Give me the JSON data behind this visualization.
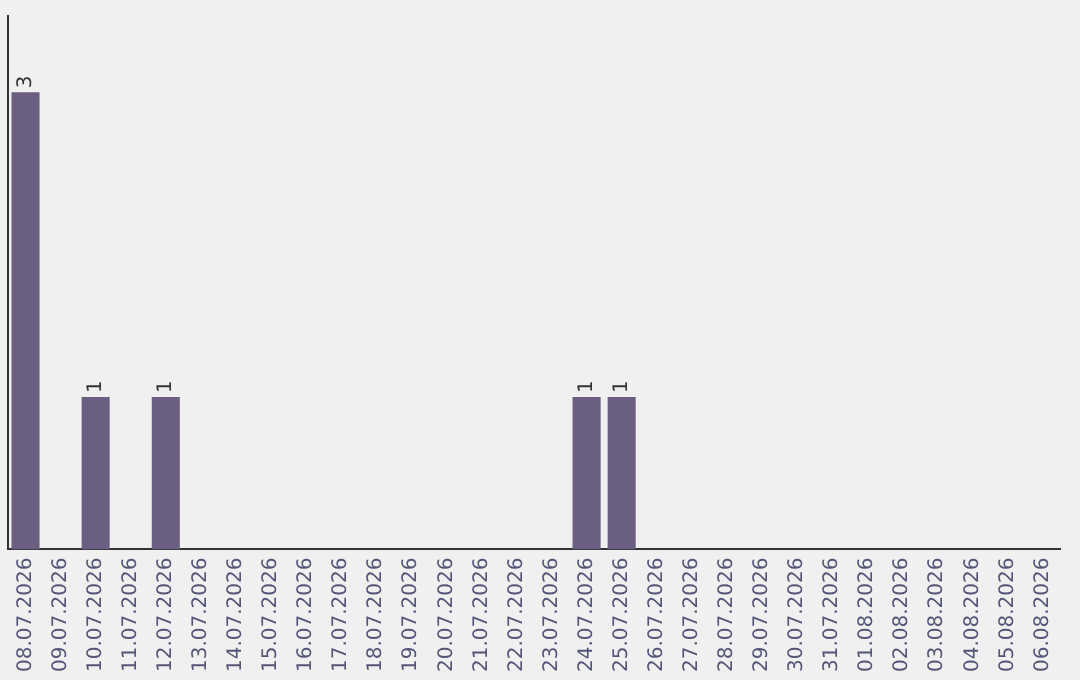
{
  "chart_data": {
    "type": "bar",
    "categories": [
      "08.07.2026",
      "09.07.2026",
      "10.07.2026",
      "11.07.2026",
      "12.07.2026",
      "13.07.2026",
      "14.07.2026",
      "15.07.2026",
      "16.07.2026",
      "17.07.2026",
      "18.07.2026",
      "19.07.2026",
      "20.07.2026",
      "21.07.2026",
      "22.07.2026",
      "23.07.2026",
      "24.07.2026",
      "25.07.2026",
      "26.07.2026",
      "27.07.2026",
      "28.07.2026",
      "29.07.2026",
      "30.07.2026",
      "31.07.2026",
      "01.08.2026",
      "02.08.2026",
      "03.08.2026",
      "04.08.2026",
      "05.08.2026",
      "06.08.2026"
    ],
    "values": [
      3,
      0,
      1,
      0,
      1,
      0,
      0,
      0,
      0,
      0,
      0,
      0,
      0,
      0,
      0,
      0,
      1,
      1,
      0,
      0,
      0,
      0,
      0,
      0,
      0,
      0,
      0,
      0,
      0,
      0
    ],
    "value_labels": [
      "3",
      null,
      "1",
      null,
      "1",
      null,
      null,
      null,
      null,
      null,
      null,
      null,
      null,
      null,
      null,
      null,
      "1",
      "1",
      null,
      null,
      null,
      null,
      null,
      null,
      null,
      null,
      null,
      null,
      null,
      null
    ],
    "color": "#6a5f80",
    "tick_labels": "x",
    "grid": false,
    "legend": false
  }
}
